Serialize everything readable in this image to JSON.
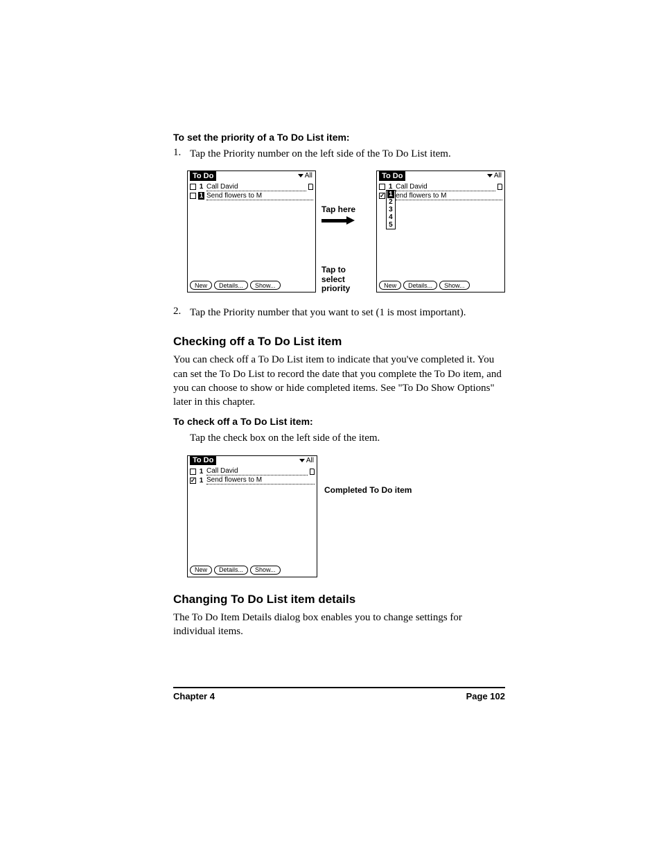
{
  "headings": {
    "set_priority": "To set the priority of a To Do List item:",
    "checking_off": "Checking off a To Do List item",
    "check_off_proc": "To check off a To Do List item:",
    "changing_details": "Changing To Do List item details"
  },
  "steps": {
    "s1_num": "1.",
    "s1_text": "Tap the Priority number on the left side of the To Do List item.",
    "s2_num": "2.",
    "s2_text": "Tap the Priority number that you want to set (1 is most important).",
    "check_step": "Tap the check box on the left side of the item."
  },
  "paragraphs": {
    "checking_off": "You can check off a To Do List item to indicate that you've completed it. You can set the To Do List to record the date that you complete the To Do item, and you can choose to show or hide completed items. See \"To Do Show Options\" later in this chapter.",
    "changing_details": "The To Do Item Details dialog box enables you to change settings for individual items."
  },
  "callouts": {
    "tap_here": "Tap here",
    "tap_select": "Tap to select priority",
    "completed": "Completed To Do item"
  },
  "palm": {
    "title": "To Do",
    "filter": "All",
    "buttons": {
      "new": "New",
      "details": "Details...",
      "show": "Show..."
    },
    "screens": {
      "left1": {
        "rows": [
          {
            "checked": false,
            "priority": "1",
            "pri_selected": false,
            "text": "Call David",
            "note": true
          },
          {
            "checked": false,
            "priority": "1",
            "pri_selected": true,
            "text": "Send flowers to M",
            "note": false
          }
        ]
      },
      "right1": {
        "rows": [
          {
            "checked": false,
            "priority": "1",
            "pri_selected": false,
            "text": "Call David",
            "note": true
          },
          {
            "checked": true,
            "priority": "1",
            "pri_selected": true,
            "text": "end flowers to M",
            "note": false
          }
        ],
        "dropdown": {
          "options": [
            "1",
            "2",
            "3",
            "4",
            "5"
          ],
          "selected": "1"
        }
      },
      "check": {
        "rows": [
          {
            "checked": false,
            "priority": "1",
            "pri_selected": false,
            "text": "Call David",
            "note": true
          },
          {
            "checked": true,
            "priority": "1",
            "pri_selected": false,
            "text": "Send flowers to M",
            "note": false
          }
        ]
      }
    }
  },
  "footer": {
    "chapter": "Chapter 4",
    "page": "Page 102"
  },
  "colors": {
    "text": "#000000",
    "bg": "#ffffff"
  }
}
